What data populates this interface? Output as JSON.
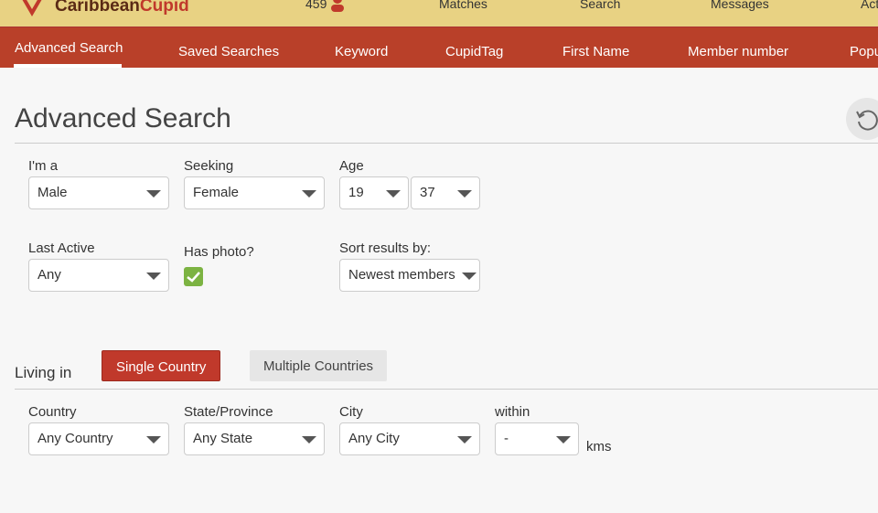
{
  "header": {
    "brand_a": "Caribbean",
    "brand_b": "Cupid",
    "count": "459",
    "nav": [
      "Matches",
      "Search",
      "Messages",
      "Act"
    ]
  },
  "tabs": [
    "Advanced Search",
    "Saved Searches",
    "Keyword",
    "CupidTag",
    "First Name",
    "Member number",
    "Popu"
  ],
  "title": "Advanced Search",
  "form": {
    "im_a": {
      "label": "I'm a",
      "value": "Male"
    },
    "seeking": {
      "label": "Seeking",
      "value": "Female"
    },
    "age": {
      "label": "Age",
      "min": "19",
      "max": "37"
    },
    "last_active": {
      "label": "Last Active",
      "value": "Any"
    },
    "has_photo": {
      "label": "Has photo?",
      "checked": true
    },
    "sort": {
      "label": "Sort results by:",
      "value": "Newest members"
    }
  },
  "living": {
    "label": "Living in",
    "single": "Single Country",
    "multi": "Multiple Countries",
    "country": {
      "label": "Country",
      "value": "Any Country"
    },
    "state": {
      "label": "State/Province",
      "value": "Any State"
    },
    "city": {
      "label": "City",
      "value": "Any City"
    },
    "within": {
      "label": "within",
      "value": "-",
      "unit": "kms"
    }
  },
  "colors": {
    "topbar": "#e8d283",
    "nav": "#b94029",
    "check": "#7cb342"
  }
}
